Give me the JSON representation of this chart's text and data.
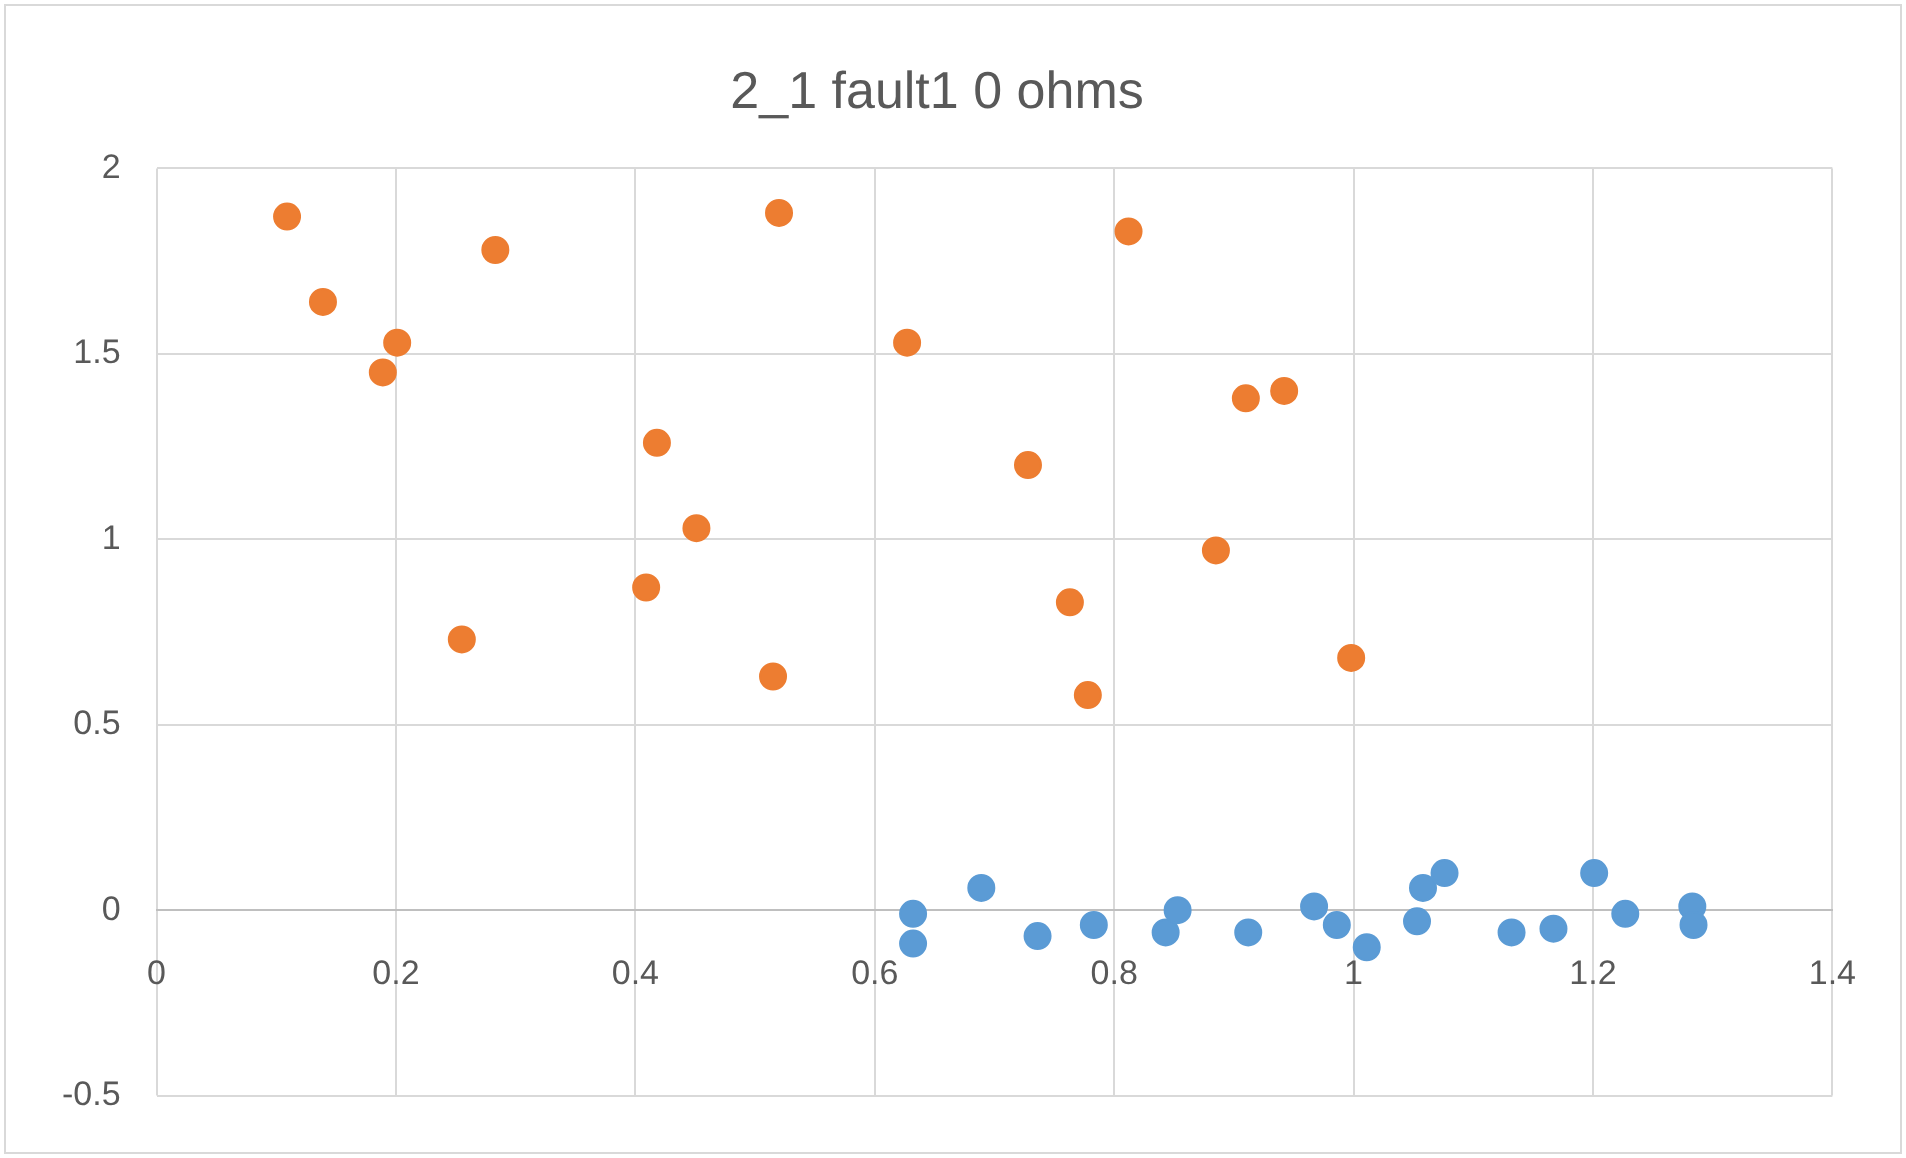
{
  "chart_data": {
    "type": "scatter",
    "title": "2_1 fault1 0 ohms",
    "xlim": [
      0,
      1.4
    ],
    "xticks": [
      0,
      0.2,
      0.4,
      0.6,
      0.8,
      1,
      1.2,
      1.4
    ],
    "ylim": [
      -0.5,
      2
    ],
    "yticks": [
      -0.5,
      0,
      0.5,
      1,
      1.5,
      2
    ],
    "grid": true,
    "legend": false,
    "marker": "circle",
    "series": [
      {
        "color": "#5b9bd5",
        "x": [
          0.632,
          0.632,
          0.689,
          0.736,
          0.783,
          0.843,
          0.853,
          0.912,
          0.967,
          0.986,
          1.011,
          1.053,
          1.058,
          1.076,
          1.132,
          1.167,
          1.201,
          1.227,
          1.283,
          1.284
        ],
        "values": [
          -0.01,
          -0.09,
          0.06,
          -0.07,
          -0.04,
          -0.06,
          0.0,
          -0.06,
          0.01,
          -0.04,
          -0.1,
          -0.03,
          0.06,
          0.1,
          -0.06,
          -0.05,
          0.1,
          -0.01,
          0.01,
          -0.04
        ]
      },
      {
        "color": "#ed7d31",
        "x": [
          0.109,
          0.139,
          0.189,
          0.201,
          0.255,
          0.283,
          0.409,
          0.418,
          0.451,
          0.515,
          0.52,
          0.627,
          0.728,
          0.763,
          0.778,
          0.812,
          0.885,
          0.91,
          0.942,
          0.998
        ],
        "values": [
          1.87,
          1.64,
          1.45,
          1.53,
          0.73,
          1.78,
          0.87,
          1.26,
          1.03,
          0.63,
          1.88,
          1.53,
          1.2,
          0.83,
          0.58,
          1.83,
          0.97,
          1.38,
          1.4,
          0.68
        ]
      }
    ]
  }
}
